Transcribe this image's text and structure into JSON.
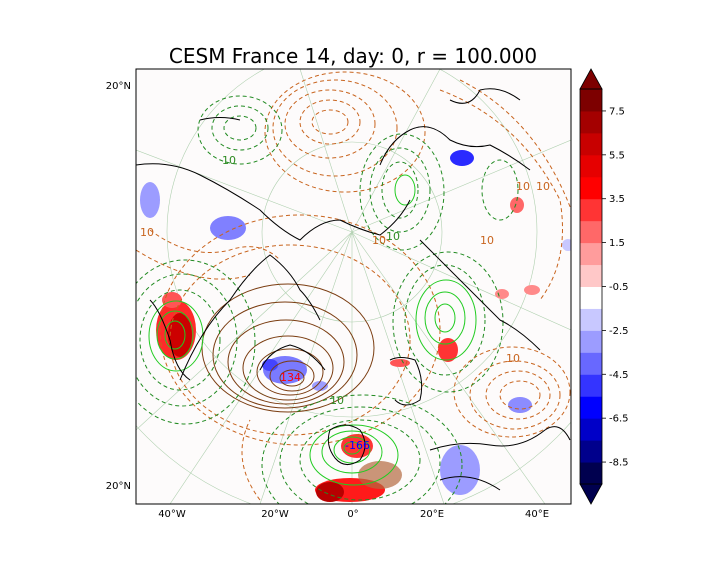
{
  "chart_data": {
    "type": "contour-map",
    "title": "CESM France 14, day: 0, r = 100.000",
    "projection": "north-polar-stereographic",
    "lon_ticks": [
      "40°W",
      "20°W",
      "0°",
      "20°E",
      "40°E"
    ],
    "lat_ticks": [
      "20°N",
      "20°N"
    ],
    "colorbar": {
      "levels": [
        7.5,
        5.5,
        3.5,
        1.5,
        -0.5,
        -2.5,
        -4.5,
        -6.5,
        -8.5
      ],
      "range": [
        -9.5,
        8.5
      ],
      "extend": "both",
      "colors": [
        "#00004f",
        "#00008c",
        "#0000c8",
        "#0000ff",
        "#3434ff",
        "#6868ff",
        "#9c9cff",
        "#c8c8ff",
        "#ffffff",
        "#ffc8c8",
        "#ff9c9c",
        "#ff6868",
        "#ff3434",
        "#ff0000",
        "#e60000",
        "#c80000",
        "#a40000",
        "#7d0000"
      ]
    },
    "contour_labels": [
      {
        "text": "10",
        "color": "#2e8b22"
      },
      {
        "text": "10",
        "color": "#c8641e"
      },
      {
        "text": "10",
        "color": "#2e8b22"
      },
      {
        "text": "10",
        "color": "#c8641e"
      },
      {
        "text": "10",
        "color": "#c8641e"
      },
      {
        "text": "10",
        "color": "#c8641e"
      },
      {
        "text": "10",
        "color": "#c8641e"
      },
      {
        "text": "10",
        "color": "#2e8b22"
      },
      {
        "text": "10",
        "color": "#c8641e"
      }
    ],
    "extrema": [
      {
        "label": "134",
        "kind": "max",
        "color": "#ff0000"
      },
      {
        "label": "-166",
        "kind": "min",
        "color": "#0000ff"
      }
    ],
    "series": [
      {
        "color": "#c8641e",
        "style": "dashed"
      },
      {
        "color": "#7a3c10",
        "style": "solid"
      },
      {
        "color": "#228b22",
        "style": "dashed"
      },
      {
        "color": "#22cc22",
        "style": "solid"
      }
    ]
  }
}
